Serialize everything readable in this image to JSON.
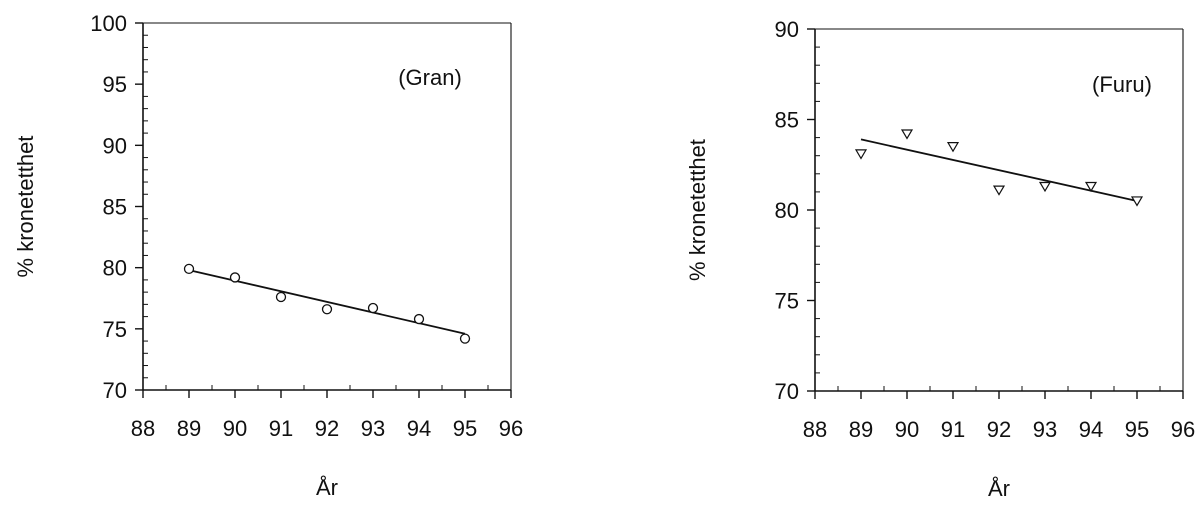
{
  "chart_data": [
    {
      "type": "scatter",
      "annotation": "(Gran)",
      "xlabel": "År",
      "ylabel": "% kronetetthet",
      "xlim": [
        88,
        96
      ],
      "ylim": [
        70,
        100
      ],
      "x_ticks": [
        88,
        89,
        90,
        91,
        92,
        93,
        94,
        95,
        96
      ],
      "y_ticks": [
        70,
        75,
        80,
        85,
        90,
        95,
        100
      ],
      "marker": "circle",
      "points": {
        "x": [
          89,
          90,
          91,
          92,
          93,
          94,
          95
        ],
        "y": [
          79.9,
          79.2,
          77.6,
          76.6,
          76.7,
          75.8,
          74.2
        ]
      },
      "trendline": {
        "x": [
          89,
          95
        ],
        "y": [
          79.8,
          74.6
        ]
      },
      "grid": false
    },
    {
      "type": "scatter",
      "annotation": "(Furu)",
      "xlabel": "År",
      "ylabel": "% kronetetthet",
      "xlim": [
        88,
        96
      ],
      "ylim": [
        70,
        90
      ],
      "x_ticks": [
        88,
        89,
        90,
        91,
        92,
        93,
        94,
        95,
        96
      ],
      "y_ticks": [
        70,
        75,
        80,
        85,
        90
      ],
      "marker": "triangle-down",
      "points": {
        "x": [
          89,
          90,
          91,
          92,
          93,
          94,
          95
        ],
        "y": [
          83.1,
          84.2,
          83.5,
          81.1,
          81.3,
          81.3,
          80.5
        ]
      },
      "trendline": {
        "x": [
          89,
          95
        ],
        "y": [
          83.9,
          80.5
        ]
      },
      "grid": false
    }
  ]
}
